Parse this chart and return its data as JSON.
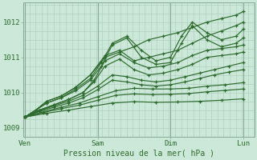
{
  "bg_color": "#cce8d8",
  "line_color": "#2d6a2d",
  "grid_color": "#aacab8",
  "xlabel": "Pression niveau de la mer( hPa )",
  "xtick_labels": [
    "Ven",
    "Sam",
    "Dim",
    "Lun"
  ],
  "xtick_positions": [
    0.0,
    1.0,
    2.0,
    3.0
  ],
  "ylim": [
    1008.75,
    1012.55
  ],
  "yticks": [
    1009,
    1010,
    1011,
    1012
  ],
  "xlim": [
    -0.02,
    3.15
  ],
  "figsize": [
    3.2,
    2.0
  ],
  "dpi": 100,
  "lines": [
    {
      "pts_x": [
        0,
        0.15,
        0.3,
        0.5,
        0.7,
        0.9,
        1.1,
        1.3,
        1.5,
        1.7,
        1.9,
        2.1,
        2.3,
        2.5,
        2.7,
        2.9,
        3.0
      ],
      "pts_y": [
        1009.3,
        1009.5,
        1009.75,
        1009.9,
        1010.15,
        1010.5,
        1011.0,
        1011.15,
        1011.3,
        1011.5,
        1011.6,
        1011.7,
        1011.85,
        1012.0,
        1012.1,
        1012.2,
        1012.3
      ]
    },
    {
      "pts_x": [
        0,
        0.15,
        0.3,
        0.5,
        0.7,
        0.9,
        1.1,
        1.3,
        1.5,
        1.7,
        1.9,
        2.1,
        2.3,
        2.5,
        2.7,
        2.9,
        3.0
      ],
      "pts_y": [
        1009.3,
        1009.5,
        1009.75,
        1009.9,
        1010.15,
        1010.5,
        1011.05,
        1011.2,
        1010.9,
        1011.0,
        1011.1,
        1011.2,
        1011.4,
        1011.6,
        1011.75,
        1011.9,
        1012.0
      ]
    },
    {
      "pts_x": [
        0,
        0.15,
        0.3,
        0.5,
        0.7,
        0.9,
        1.05,
        1.2,
        1.4,
        1.6,
        1.8,
        2.0,
        2.15,
        2.3,
        2.5,
        2.7,
        2.9,
        3.0
      ],
      "pts_y": [
        1009.3,
        1009.5,
        1009.7,
        1009.85,
        1010.1,
        1010.4,
        1010.85,
        1011.4,
        1011.6,
        1011.2,
        1010.9,
        1011.0,
        1011.6,
        1012.0,
        1011.7,
        1011.5,
        1011.6,
        1011.8
      ]
    },
    {
      "pts_x": [
        0,
        0.15,
        0.3,
        0.5,
        0.7,
        0.9,
        1.05,
        1.2,
        1.4,
        1.6,
        1.8,
        2.0,
        2.15,
        2.3,
        2.5,
        2.7,
        2.9,
        3.0
      ],
      "pts_y": [
        1009.3,
        1009.5,
        1009.7,
        1009.85,
        1010.05,
        1010.35,
        1010.75,
        1011.35,
        1011.55,
        1011.0,
        1010.8,
        1010.85,
        1011.4,
        1011.9,
        1011.5,
        1011.3,
        1011.4,
        1011.55
      ]
    },
    {
      "pts_x": [
        0,
        0.2,
        0.4,
        0.6,
        0.8,
        0.95,
        1.1,
        1.3,
        1.5,
        1.7,
        1.9,
        2.1,
        2.3,
        2.5,
        2.7,
        2.9,
        3.0
      ],
      "pts_y": [
        1009.3,
        1009.5,
        1009.65,
        1009.8,
        1010.0,
        1010.35,
        1010.9,
        1011.1,
        1010.85,
        1010.7,
        1010.75,
        1010.85,
        1011.05,
        1011.2,
        1011.25,
        1011.3,
        1011.35
      ]
    },
    {
      "pts_x": [
        0,
        0.2,
        0.4,
        0.6,
        0.8,
        0.95,
        1.1,
        1.3,
        1.5,
        1.7,
        1.9,
        2.1,
        2.3,
        2.5,
        2.7,
        2.9,
        3.0
      ],
      "pts_y": [
        1009.3,
        1009.5,
        1009.65,
        1009.8,
        1010.0,
        1010.3,
        1010.75,
        1010.95,
        1010.65,
        1010.5,
        1010.55,
        1010.65,
        1010.8,
        1011.0,
        1011.05,
        1011.1,
        1011.15
      ]
    },
    {
      "pts_x": [
        0,
        0.2,
        0.4,
        0.6,
        0.8,
        1.0,
        1.2,
        1.4,
        1.6,
        1.8,
        2.0,
        2.2,
        2.4,
        2.6,
        2.8,
        3.0
      ],
      "pts_y": [
        1009.3,
        1009.48,
        1009.62,
        1009.75,
        1009.92,
        1010.18,
        1010.5,
        1010.45,
        1010.35,
        1010.3,
        1010.35,
        1010.45,
        1010.55,
        1010.65,
        1010.75,
        1010.85
      ]
    },
    {
      "pts_x": [
        0,
        0.2,
        0.4,
        0.6,
        0.8,
        1.0,
        1.2,
        1.4,
        1.6,
        1.8,
        2.0,
        2.2,
        2.4,
        2.6,
        2.8,
        3.0
      ],
      "pts_y": [
        1009.3,
        1009.46,
        1009.58,
        1009.7,
        1009.85,
        1010.08,
        1010.35,
        1010.3,
        1010.22,
        1010.18,
        1010.22,
        1010.3,
        1010.4,
        1010.5,
        1010.58,
        1010.65
      ]
    },
    {
      "pts_x": [
        0,
        0.25,
        0.5,
        0.75,
        1.0,
        1.25,
        1.5,
        1.75,
        2.0,
        2.25,
        2.5,
        2.75,
        3.0
      ],
      "pts_y": [
        1009.3,
        1009.45,
        1009.58,
        1009.7,
        1009.88,
        1010.05,
        1010.12,
        1010.1,
        1010.1,
        1010.12,
        1010.18,
        1010.22,
        1010.28
      ]
    },
    {
      "pts_x": [
        0,
        0.25,
        0.5,
        0.75,
        1.0,
        1.25,
        1.5,
        1.75,
        2.0,
        2.25,
        2.5,
        2.75,
        3.0
      ],
      "pts_y": [
        1009.3,
        1009.43,
        1009.54,
        1009.64,
        1009.78,
        1009.92,
        1009.96,
        1009.94,
        1009.95,
        1009.97,
        1010.02,
        1010.06,
        1010.1
      ]
    },
    {
      "pts_x": [
        0,
        0.3,
        0.6,
        0.9,
        1.2,
        1.5,
        1.8,
        2.1,
        2.4,
        2.7,
        3.0
      ],
      "pts_y": [
        1009.3,
        1009.41,
        1009.5,
        1009.6,
        1009.7,
        1009.74,
        1009.72,
        1009.73,
        1009.75,
        1009.78,
        1009.82
      ]
    }
  ]
}
